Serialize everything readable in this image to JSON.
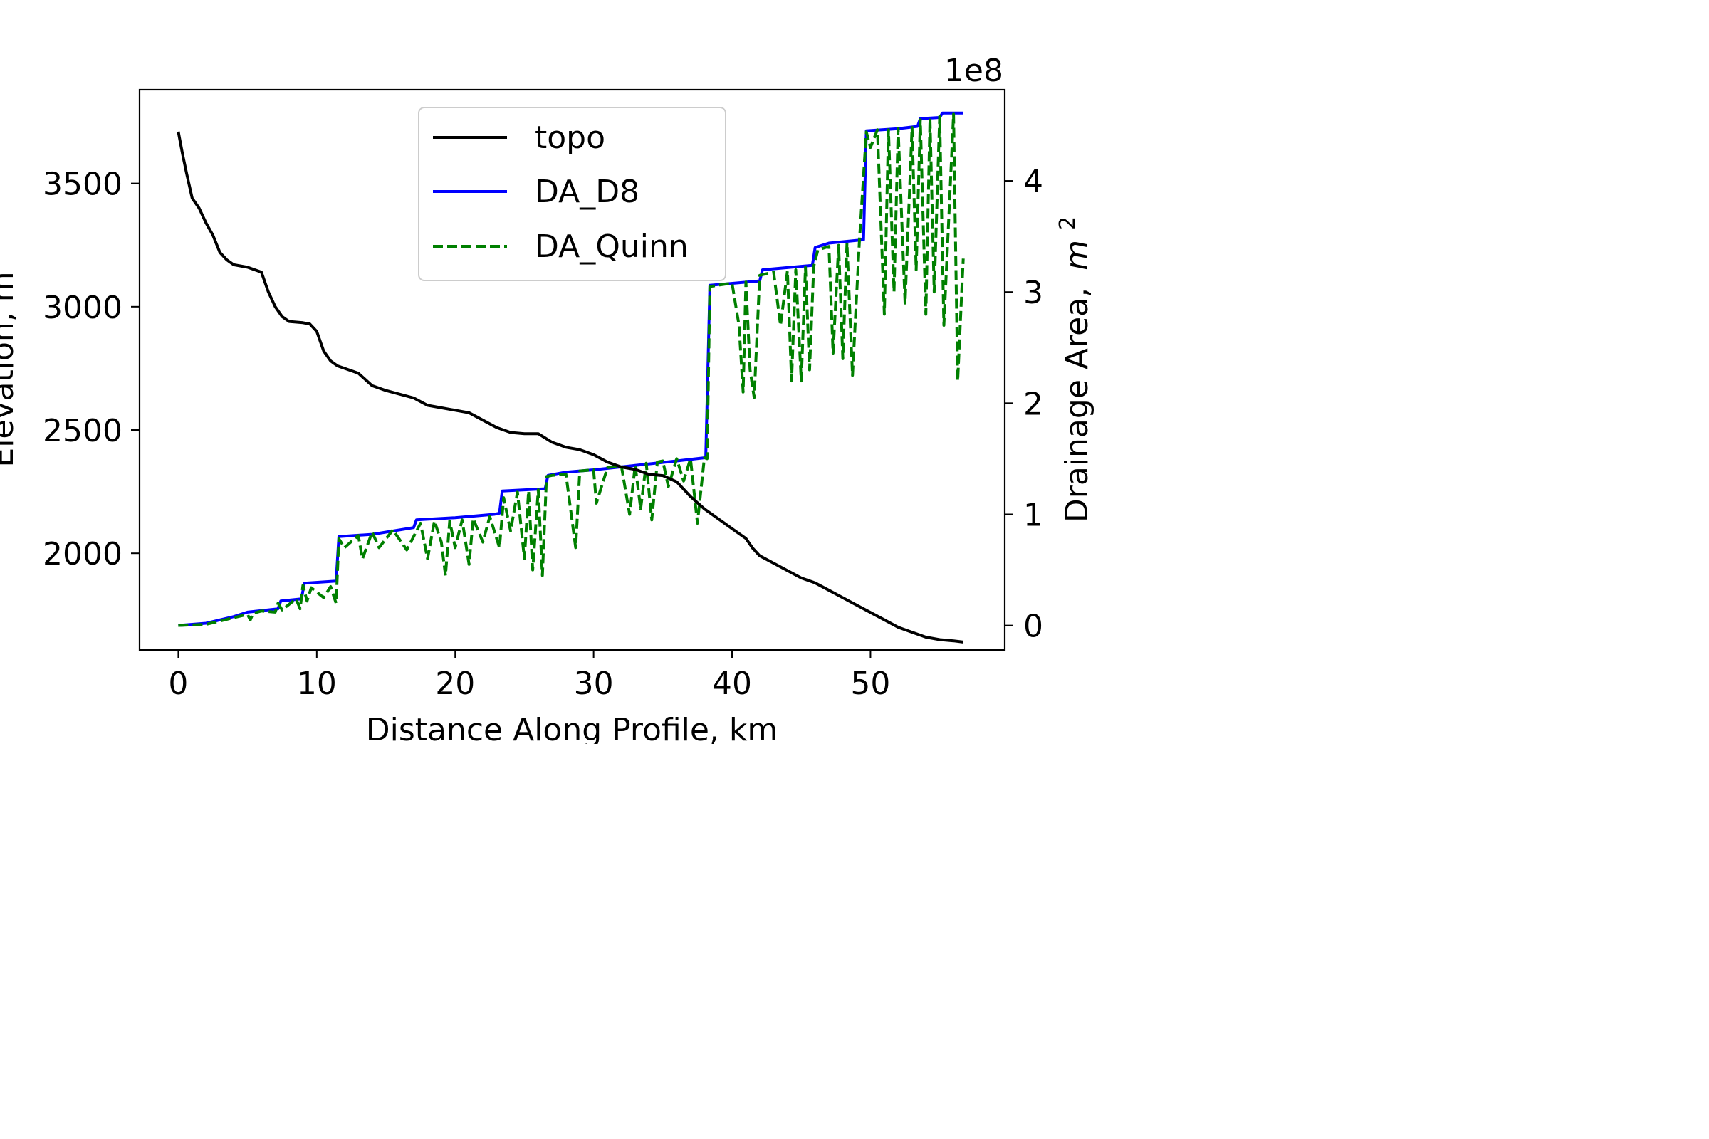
{
  "chart_data": {
    "type": "line",
    "title": "",
    "xlabel": "Distance Along Profile, km",
    "ylabel_left": "Elevation, m",
    "ylabel_right": "Drainage Area,",
    "ylabel_right_math": "m",
    "ylabel_right_sup": "2",
    "right_axis_offset_text": "1e8",
    "xlim": [
      -2.8,
      59.7
    ],
    "ylim_left": [
      1608,
      3880
    ],
    "ylim_right": [
      -0.22,
      4.82
    ],
    "xticks": [
      0,
      10,
      20,
      30,
      40,
      50
    ],
    "yticks_left": [
      2000,
      2500,
      3000,
      3500
    ],
    "yticks_right": [
      0,
      1,
      2,
      3,
      4
    ],
    "grid": false,
    "legend_position": "upper-center",
    "colors": {
      "topo": "#000000",
      "DA_D8": "#0000ff",
      "DA_Quinn": "#008000"
    },
    "series": [
      {
        "name": "topo",
        "axis": "left",
        "style": "solid",
        "x": [
          0,
          0.3,
          0.6,
          1.0,
          1.5,
          2.0,
          2.5,
          3.0,
          3.5,
          4.0,
          5.0,
          6.0,
          6.5,
          7.0,
          7.5,
          8.0,
          9.0,
          9.5,
          10.0,
          10.5,
          11.0,
          11.5,
          12.0,
          13.0,
          14.0,
          15.0,
          17.0,
          18.0,
          20.0,
          21.0,
          22.0,
          23.0,
          24.0,
          25.0,
          26.0,
          27.0,
          28.0,
          29.0,
          30.0,
          31.0,
          32.0,
          33.0,
          34.0,
          35.0,
          36.0,
          37.0,
          38.0,
          39.0,
          40.0,
          41.0,
          41.5,
          42.0,
          43.0,
          44.0,
          45.0,
          46.0,
          47.0,
          48.0,
          49.0,
          50.0,
          51.0,
          52.0,
          53.0,
          54.0,
          55.0,
          56.0,
          56.7
        ],
        "y": [
          3710,
          3620,
          3540,
          3440,
          3400,
          3340,
          3290,
          3220,
          3190,
          3170,
          3160,
          3140,
          3060,
          3000,
          2960,
          2940,
          2935,
          2930,
          2900,
          2820,
          2780,
          2760,
          2750,
          2730,
          2680,
          2660,
          2630,
          2600,
          2580,
          2570,
          2540,
          2510,
          2490,
          2485,
          2485,
          2450,
          2430,
          2420,
          2400,
          2370,
          2350,
          2340,
          2320,
          2315,
          2290,
          2230,
          2180,
          2140,
          2100,
          2060,
          2020,
          1990,
          1960,
          1930,
          1900,
          1880,
          1850,
          1820,
          1790,
          1760,
          1730,
          1700,
          1680,
          1660,
          1650,
          1645,
          1640
        ]
      },
      {
        "name": "DA_D8",
        "axis": "right",
        "style": "solid",
        "x": [
          0,
          2.0,
          3.0,
          4.0,
          5.0,
          7.2,
          7.4,
          8.9,
          9.1,
          11.4,
          11.6,
          14.0,
          17.0,
          17.2,
          20.0,
          22.8,
          23.2,
          23.4,
          26.5,
          26.7,
          28.0,
          30.0,
          33.0,
          36.0,
          38.1,
          38.4,
          42.0,
          42.2,
          45.8,
          46.0,
          47.0,
          49.5,
          49.7,
          52.0,
          53.4,
          53.6,
          55.0,
          55.2,
          56.7
        ],
        "y": [
          0,
          0.02,
          0.05,
          0.08,
          0.12,
          0.15,
          0.22,
          0.24,
          0.38,
          0.4,
          0.8,
          0.82,
          0.88,
          0.95,
          0.97,
          1.0,
          1.01,
          1.21,
          1.23,
          1.35,
          1.38,
          1.4,
          1.44,
          1.48,
          1.51,
          3.06,
          3.1,
          3.2,
          3.24,
          3.4,
          3.44,
          3.47,
          4.45,
          4.47,
          4.49,
          4.56,
          4.57,
          4.61,
          4.61
        ]
      },
      {
        "name": "DA_Quinn",
        "axis": "right",
        "style": "dashed",
        "x": [
          0,
          2.0,
          3.0,
          4.0,
          5.0,
          5.2,
          5.4,
          6.0,
          7.0,
          7.2,
          7.5,
          8.5,
          8.8,
          9.0,
          9.3,
          9.6,
          10.5,
          11.0,
          11.4,
          11.6,
          12.0,
          13.0,
          13.3,
          14.0,
          14.5,
          15.5,
          16.5,
          17.5,
          18.0,
          18.5,
          19.0,
          19.3,
          19.6,
          20.0,
          20.5,
          21.0,
          21.3,
          22.0,
          22.5,
          23.2,
          23.5,
          24.0,
          24.5,
          25.0,
          25.3,
          25.6,
          26.0,
          26.3,
          26.6,
          27.0,
          28.0,
          28.7,
          29.0,
          30.0,
          30.2,
          31.0,
          32.0,
          32.6,
          33.0,
          33.4,
          33.8,
          34.2,
          34.6,
          35.0,
          35.4,
          36.0,
          36.5,
          37.0,
          37.5,
          38.0,
          38.2,
          38.4,
          40.0,
          40.5,
          40.8,
          41.0,
          41.3,
          41.6,
          42.0,
          43.0,
          43.5,
          44.0,
          44.3,
          44.6,
          45.0,
          45.3,
          45.6,
          45.9,
          46.2,
          47.0,
          47.3,
          47.7,
          48.0,
          48.3,
          48.7,
          49.2,
          49.7,
          50.0,
          50.5,
          51.0,
          51.3,
          51.7,
          52.0,
          52.5,
          53.0,
          53.3,
          53.6,
          54.0,
          54.3,
          54.6,
          55.0,
          55.3,
          56.0,
          56.3,
          56.7
        ],
        "y": [
          0,
          0.01,
          0.04,
          0.07,
          0.1,
          0.05,
          0.11,
          0.13,
          0.12,
          0.2,
          0.14,
          0.24,
          0.15,
          0.36,
          0.22,
          0.34,
          0.25,
          0.35,
          0.2,
          0.78,
          0.7,
          0.81,
          0.6,
          0.84,
          0.7,
          0.86,
          0.68,
          0.92,
          0.6,
          0.94,
          0.75,
          0.45,
          0.94,
          0.7,
          0.95,
          0.55,
          0.96,
          0.75,
          0.98,
          0.7,
          1.15,
          0.85,
          1.2,
          0.6,
          1.21,
          0.5,
          1.22,
          0.45,
          1.34,
          1.35,
          1.36,
          0.7,
          1.39,
          1.4,
          1.1,
          1.42,
          1.44,
          1.0,
          1.44,
          1.05,
          1.46,
          0.95,
          1.47,
          1.48,
          1.25,
          1.5,
          1.3,
          1.5,
          0.92,
          1.51,
          1.5,
          3.05,
          3.08,
          2.7,
          2.1,
          3.09,
          2.3,
          2.05,
          3.15,
          3.18,
          2.7,
          3.19,
          2.2,
          3.2,
          2.2,
          3.22,
          2.3,
          3.23,
          3.38,
          3.41,
          2.45,
          3.42,
          2.4,
          3.44,
          2.25,
          3.46,
          4.44,
          4.3,
          4.46,
          2.8,
          4.46,
          3.0,
          4.47,
          2.9,
          4.48,
          3.2,
          4.55,
          2.8,
          4.56,
          3.0,
          4.58,
          2.7,
          4.6,
          2.2,
          3.3
        ]
      }
    ]
  }
}
